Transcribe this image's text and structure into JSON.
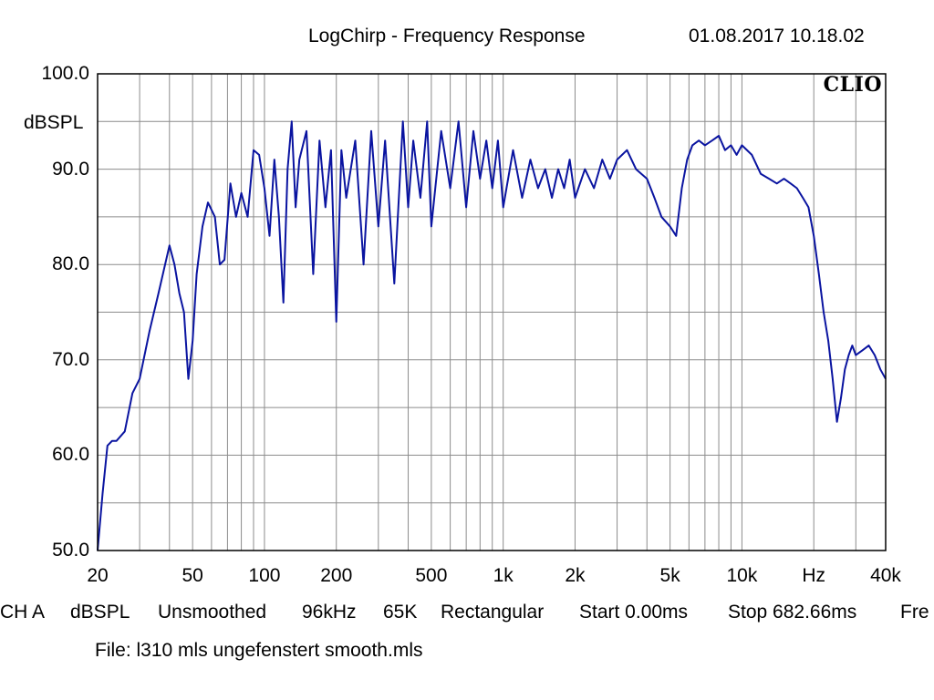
{
  "header": {
    "title": "LogChirp - Frequency Response",
    "datetime": "01.08.2017 10.18.02"
  },
  "brand": "CLIO",
  "status_bar": {
    "channel": "CH A",
    "unit": "dBSPL",
    "smoothing": "Unsmoothed",
    "sample_rate": "96kHz",
    "size": "65K",
    "window": "Rectangular",
    "start": "Start 0.00ms",
    "stop": "Stop 682.66ms",
    "freq_partial": "Fre"
  },
  "file_label": "File: l310 mls ungefenstert smooth.mls",
  "colors": {
    "curve": "#0a14a0",
    "grid": "#8c8c8c",
    "frame": "#000000"
  },
  "chart_data": {
    "type": "line",
    "xscale": "log",
    "xlim": [
      20,
      40000
    ],
    "ylim": [
      50,
      100
    ],
    "ylabel": "dBSPL",
    "xticks": [
      {
        "value": 20,
        "label": "20"
      },
      {
        "value": 50,
        "label": "50"
      },
      {
        "value": 100,
        "label": "100"
      },
      {
        "value": 200,
        "label": "200"
      },
      {
        "value": 500,
        "label": "500"
      },
      {
        "value": 1000,
        "label": "1k"
      },
      {
        "value": 2000,
        "label": "2k"
      },
      {
        "value": 5000,
        "label": "5k"
      },
      {
        "value": 10000,
        "label": "10k"
      },
      {
        "value": 20000,
        "label": "Hz"
      },
      {
        "value": 40000,
        "label": "40k"
      }
    ],
    "yticks": [
      {
        "value": 100,
        "label": "100.0"
      },
      {
        "value": 90,
        "label": "90.0"
      },
      {
        "value": 80,
        "label": "80.0"
      },
      {
        "value": 70,
        "label": "70.0"
      },
      {
        "value": 60,
        "label": "60.0"
      },
      {
        "value": 50,
        "label": "50.0"
      }
    ],
    "grid": true,
    "series": [
      {
        "x": [
          20,
          21,
          22,
          23,
          24,
          26,
          28,
          30,
          33,
          36,
          40,
          42,
          44,
          46,
          48,
          50,
          52,
          55,
          58,
          62,
          65,
          68,
          72,
          76,
          80,
          85,
          90,
          95,
          100,
          105,
          110,
          115,
          120,
          125,
          130,
          135,
          140,
          150,
          160,
          170,
          180,
          190,
          200,
          210,
          220,
          240,
          260,
          280,
          300,
          320,
          350,
          380,
          400,
          420,
          450,
          480,
          500,
          550,
          600,
          650,
          700,
          750,
          800,
          850,
          900,
          950,
          1000,
          1100,
          1200,
          1300,
          1400,
          1500,
          1600,
          1700,
          1800,
          1900,
          2000,
          2200,
          2400,
          2600,
          2800,
          3000,
          3300,
          3600,
          4000,
          4300,
          4600,
          5000,
          5300,
          5600,
          5900,
          6200,
          6600,
          7000,
          7500,
          8000,
          8500,
          9000,
          9500,
          10000,
          11000,
          12000,
          13000,
          14000,
          15000,
          16000,
          17000,
          18000,
          19000,
          20000,
          21000,
          22000,
          23000,
          24000,
          25000,
          26000,
          27000,
          28000,
          29000,
          30000,
          32000,
          34000,
          36000,
          38000,
          40000
        ],
        "y": [
          50.0,
          56.0,
          61.0,
          61.5,
          61.5,
          62.5,
          66.5,
          68.0,
          73.0,
          77.0,
          82.0,
          80.0,
          77.0,
          75.0,
          68.0,
          72.0,
          79.0,
          84.0,
          86.5,
          85.0,
          80.0,
          80.5,
          88.5,
          85.0,
          87.5,
          85.0,
          92.0,
          91.5,
          88.0,
          83.0,
          91.0,
          85.0,
          76.0,
          90.0,
          95.0,
          86.0,
          91.0,
          94.0,
          79.0,
          93.0,
          86.0,
          92.0,
          74.0,
          92.0,
          87.0,
          93.0,
          80.0,
          94.0,
          84.0,
          93.0,
          78.0,
          95.0,
          86.0,
          93.0,
          87.0,
          95.0,
          84.0,
          94.0,
          88.0,
          95.0,
          86.0,
          94.0,
          89.0,
          93.0,
          88.0,
          93.0,
          86.0,
          92.0,
          87.0,
          91.0,
          88.0,
          90.0,
          87.0,
          90.0,
          88.0,
          91.0,
          87.0,
          90.0,
          88.0,
          91.0,
          89.0,
          91.0,
          92.0,
          90.0,
          89.0,
          87.0,
          85.0,
          84.0,
          83.0,
          88.0,
          91.0,
          92.5,
          93.0,
          92.5,
          93.0,
          93.5,
          92.0,
          92.5,
          91.5,
          92.5,
          91.5,
          89.5,
          89.0,
          88.5,
          89.0,
          88.5,
          88.0,
          87.0,
          86.0,
          83.0,
          79.0,
          75.0,
          72.0,
          68.0,
          63.5,
          66.0,
          69.0,
          70.5,
          71.5,
          70.5,
          71.0,
          71.5,
          70.5,
          69.0,
          68.0
        ]
      }
    ]
  }
}
